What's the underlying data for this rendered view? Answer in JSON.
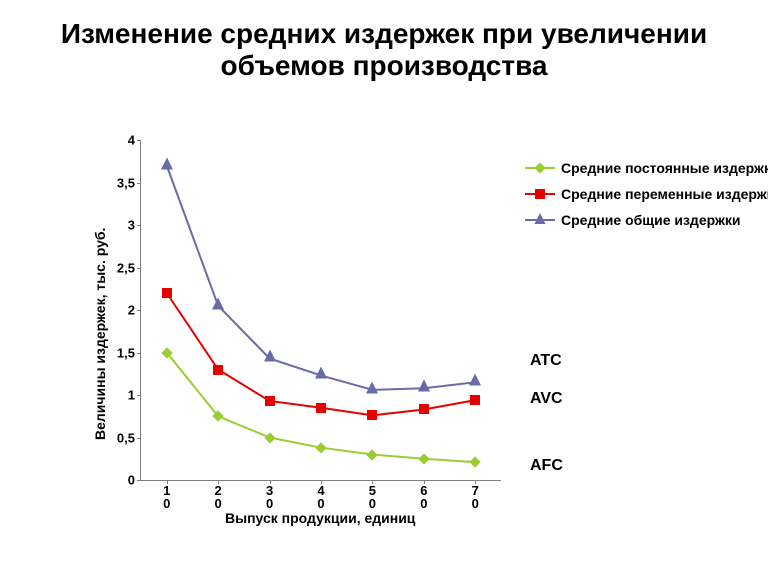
{
  "title": "Изменение средних издержек при увеличении объемов производства",
  "chart": {
    "type": "line",
    "background_color": "#ffffff",
    "axis_color": "#808080",
    "x_categories": [
      "10",
      "20",
      "30",
      "40",
      "50",
      "60",
      "70"
    ],
    "x_label": "Выпуск продукции, единиц",
    "y_label": "Величины издержек, тыс. руб.",
    "y_ticks": [
      0,
      0.5,
      1,
      1.5,
      2,
      2.5,
      3,
      3.5,
      4
    ],
    "y_tick_labels": [
      "0",
      "0,5",
      "1",
      "1,5",
      "2",
      "2,5",
      "3",
      "3,5",
      "4"
    ],
    "ylim": [
      0,
      4
    ],
    "label_fontsize": 14,
    "tick_fontsize": 13,
    "line_width": 2,
    "marker_size": 10,
    "series": [
      {
        "key": "afc",
        "legend": "Средние постоянные издержки",
        "annotation": "AFC",
        "color": "#9acd32",
        "marker": "diamond",
        "values": [
          1.5,
          0.75,
          0.5,
          0.38,
          0.3,
          0.25,
          0.21
        ]
      },
      {
        "key": "avc",
        "legend": "Средние переменные издержки",
        "annotation": "AVC",
        "color": "#e60000",
        "marker": "square",
        "values": [
          2.2,
          1.3,
          0.93,
          0.85,
          0.76,
          0.83,
          0.94
        ]
      },
      {
        "key": "atc",
        "legend": "Средние общие издержки",
        "annotation": "ATC",
        "color": "#6a6aa9",
        "marker": "triangle",
        "values": [
          3.7,
          2.05,
          1.43,
          1.23,
          1.06,
          1.08,
          1.15
        ]
      }
    ],
    "legend_fontsize": 14
  }
}
